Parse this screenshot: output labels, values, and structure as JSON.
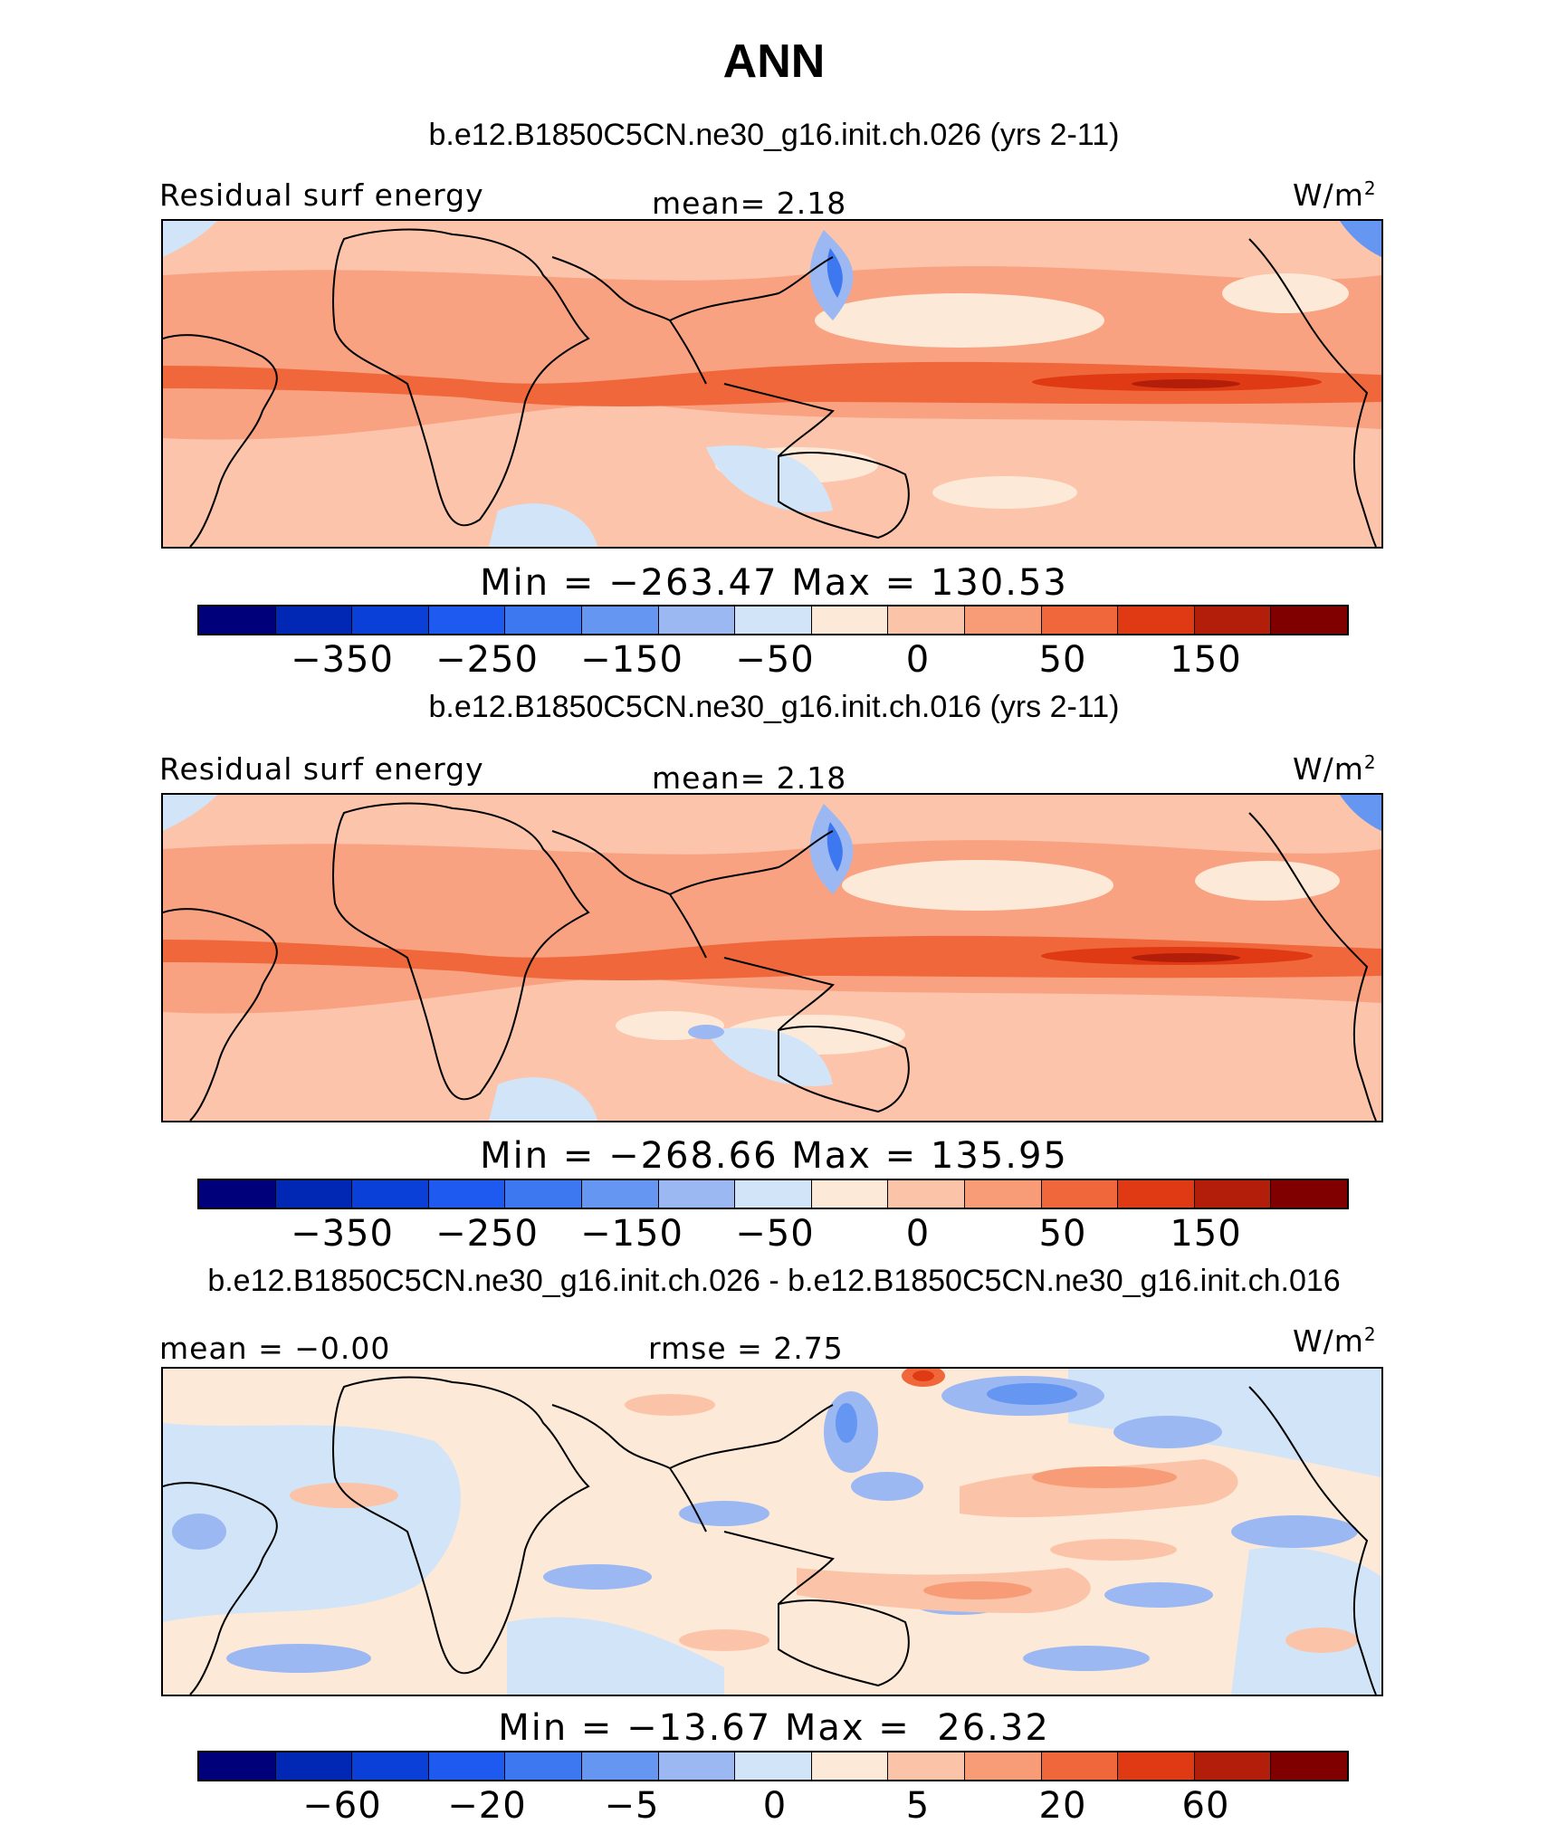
{
  "title": "ANN",
  "panels": [
    {
      "case": "b.e12.B1850C5CN.ne30_g16.init.ch.026 (yrs 2-11)",
      "left_label": "Residual surf energy",
      "center_label": "mean=   2.18",
      "units": "W/m",
      "units_sup": "2",
      "minmax": "Min = −263.47 Max = 130.53",
      "tick_labels": [
        "−350",
        "−250",
        "−150",
        "−50",
        "0",
        "50",
        "150"
      ]
    },
    {
      "case": "b.e12.B1850C5CN.ne30_g16.init.ch.016 (yrs 2-11)",
      "left_label": "Residual surf energy",
      "center_label": "mean=   2.18",
      "units": "W/m",
      "units_sup": "2",
      "minmax": "Min = −268.66 Max = 135.95",
      "tick_labels": [
        "−350",
        "−250",
        "−150",
        "−50",
        "0",
        "50",
        "150"
      ]
    },
    {
      "case": "b.e12.B1850C5CN.ne30_g16.init.ch.026 - b.e12.B1850C5CN.ne30_g16.init.ch.016",
      "left_label": "mean =  −0.00",
      "center_label": "rmse =    2.75",
      "units": "W/m",
      "units_sup": "2",
      "minmax": "Min = −13.67 Max =  26.32",
      "tick_labels": [
        "−60",
        "−20",
        "−5",
        "0",
        "5",
        "20",
        "60"
      ]
    }
  ],
  "colorbar_colors": [
    "#00007a",
    "#0028b4",
    "#0a3fd8",
    "#1e5af0",
    "#3d78f0",
    "#6596f2",
    "#9bb8f2",
    "#d2e4f8",
    "#fde9d8",
    "#fbc4a8",
    "#f79c76",
    "#f0673c",
    "#df3a14",
    "#b21e0a",
    "#800000"
  ],
  "colors": {
    "base_warm": "#f9a282",
    "light_warm": "#fcc4aa",
    "very_light": "#fde9d8",
    "strong": "#f0673c",
    "stronger": "#df3a14",
    "light_blue": "#d2e4f8",
    "mid_blue": "#9bb8f2",
    "blue": "#6596f2",
    "dark_blue": "#1e5af0"
  }
}
